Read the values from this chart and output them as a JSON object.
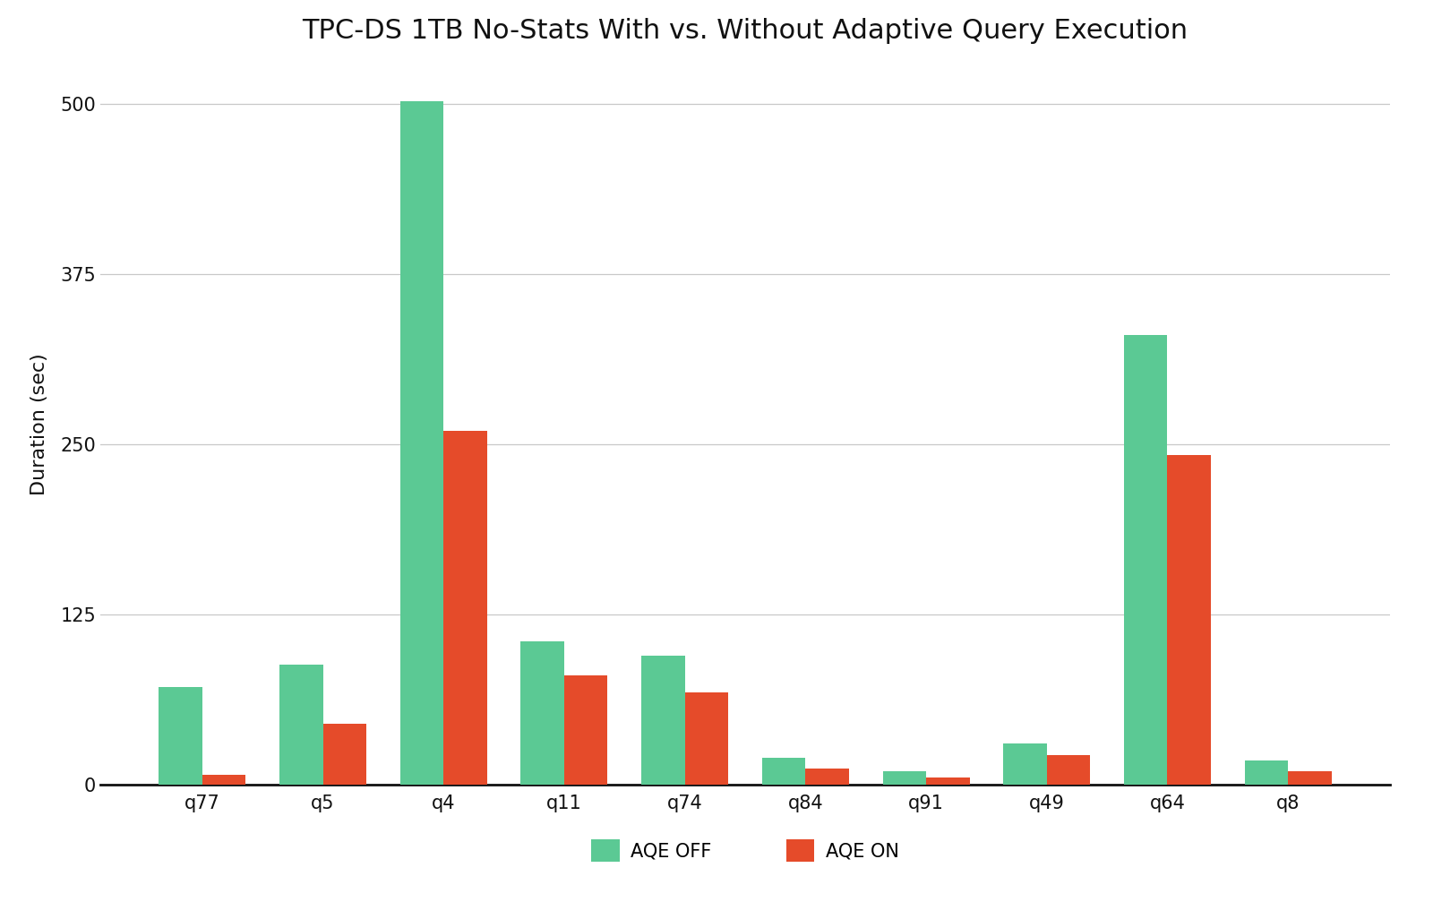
{
  "title": "TPC-DS 1TB No-Stats With vs. Without Adaptive Query Execution",
  "ylabel": "Duration (sec)",
  "categories": [
    "q77",
    "q5",
    "q4",
    "q11",
    "q74",
    "q84",
    "q91",
    "q49",
    "q64",
    "q8"
  ],
  "aqe_off": [
    72,
    88,
    502,
    105,
    95,
    20,
    10,
    30,
    330,
    18
  ],
  "aqe_on": [
    7,
    45,
    260,
    80,
    68,
    12,
    5,
    22,
    242,
    10
  ],
  "color_off": "#5bc994",
  "color_on": "#e54b2a",
  "background_color": "#ffffff",
  "legend_labels": [
    "AQE OFF",
    "AQE ON"
  ],
  "bar_width": 0.36,
  "ylim": [
    0,
    530
  ],
  "yticks": [
    0,
    125,
    250,
    375,
    500
  ],
  "grid_color": "#c8c8c8",
  "title_fontsize": 22,
  "axis_label_fontsize": 16,
  "tick_fontsize": 15,
  "legend_fontsize": 15
}
